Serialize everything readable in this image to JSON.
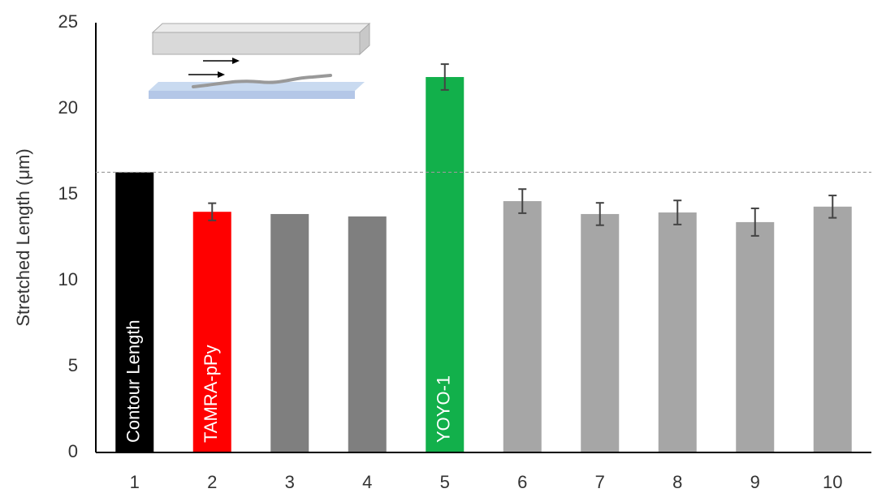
{
  "chart_data": {
    "type": "bar",
    "y_label": "Stretched Length (μm)",
    "categories": [
      "1",
      "2",
      "3",
      "4",
      "5",
      "6",
      "7",
      "8",
      "9",
      "10"
    ],
    "values": [
      16.3,
      14.0,
      13.87,
      13.73,
      21.84,
      14.62,
      13.87,
      13.96,
      13.4,
      14.3
    ],
    "errors": [
      null,
      0.5,
      null,
      null,
      0.75,
      0.7,
      0.65,
      0.7,
      0.8,
      0.65
    ],
    "colors": [
      "#000000",
      "#ff0000",
      "#7f7f7f",
      "#7f7f7f",
      "#12b04b",
      "#a6a6a6",
      "#a6a6a6",
      "#a6a6a6",
      "#a6a6a6",
      "#a6a6a6"
    ],
    "bar_labels": [
      "Contour Length",
      "TAMRA-pPy",
      null,
      null,
      "YOYO-1",
      null,
      null,
      null,
      null,
      null
    ],
    "reference_line": true,
    "ylim": [
      0,
      25
    ],
    "yticks": [
      0,
      5,
      10,
      15,
      20,
      25
    ]
  }
}
